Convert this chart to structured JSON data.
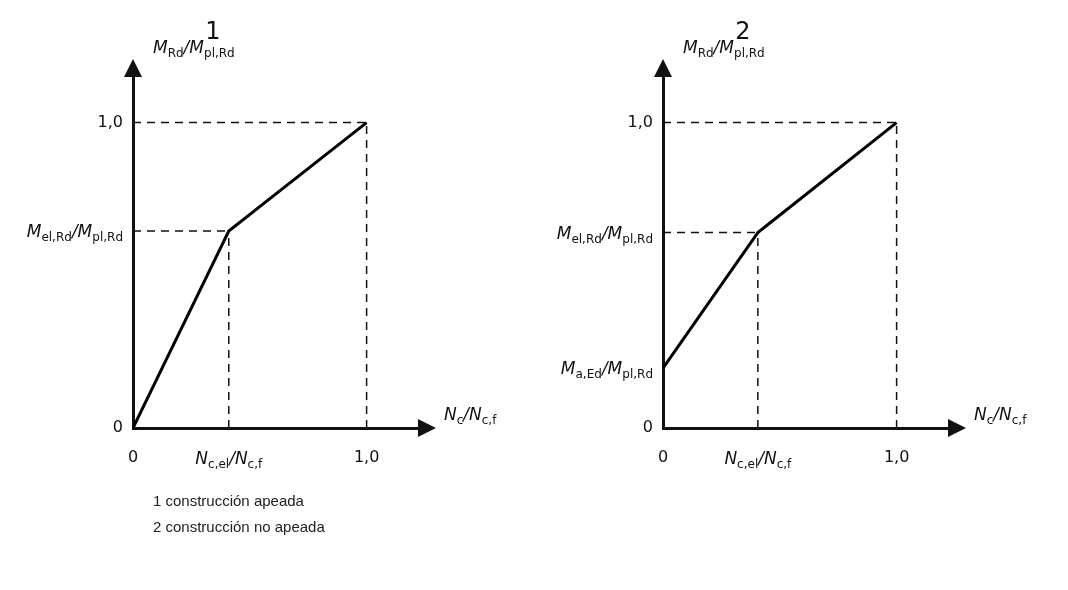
{
  "chart_data": [
    {
      "type": "line",
      "title": "1",
      "xlabel": "N$_{c}$/N$_{c,f}$",
      "ylabel": "M$_{Rd}$/M$_{pl,Rd}$",
      "xlim": [
        0,
        1.22
      ],
      "ylim": [
        0,
        1.15
      ],
      "xticks": [
        {
          "value": 0,
          "label": "0"
        },
        {
          "value": 0.41,
          "label": "N$_{c,el}$/N$_{c,f}$"
        },
        {
          "value": 1,
          "label": "1,0"
        }
      ],
      "yticks": [
        {
          "value": 0,
          "label": "0"
        },
        {
          "value": 0.645,
          "label": "M$_{el,Rd}$/M$_{pl,Rd}$"
        },
        {
          "value": 1,
          "label": "1,0"
        }
      ],
      "series": [
        {
          "color": "#000000",
          "x": [
            0,
            0.41,
            1
          ],
          "values": [
            0,
            0.645,
            1
          ]
        }
      ],
      "ref_lines": [
        {
          "axis": "x",
          "value": 0.41,
          "line_style": "dashed"
        },
        {
          "axis": "y",
          "value": 0.645,
          "line_style": "dashed"
        },
        {
          "axis": "x",
          "value": 1,
          "line_style": "dashed"
        },
        {
          "axis": "y",
          "value": 1,
          "line_style": "dashed"
        }
      ],
      "grid": false,
      "legend": false,
      "marker": "none",
      "line_style": "solid",
      "annotations": [
        "1 construcción apeada",
        "2 construcción no apeada"
      ]
    },
    {
      "type": "line",
      "title": "2",
      "xlabel": "N$_{c}$/N$_{c,f}$",
      "ylabel": "M$_{Rd}$/M$_{pl,Rd}$",
      "xlim": [
        0,
        1.22
      ],
      "ylim": [
        0,
        1.15
      ],
      "xticks": [
        {
          "value": 0,
          "label": "0"
        },
        {
          "value": 0.406,
          "label": "N$_{c,el}$/N$_{c,f}$"
        },
        {
          "value": 1,
          "label": "1,0"
        }
      ],
      "yticks": [
        {
          "value": 0,
          "label": "0"
        },
        {
          "value": 0.196,
          "label": "M$_{a,Ed}$/M$_{pl,Rd}$"
        },
        {
          "value": 0.64,
          "label": "M$_{el,Rd}$/M$_{pl,Rd}$"
        },
        {
          "value": 1,
          "label": "1,0"
        }
      ],
      "series": [
        {
          "color": "#000000",
          "x": [
            0,
            0.406,
            1
          ],
          "values": [
            0.196,
            0.64,
            1
          ]
        }
      ],
      "ref_lines": [
        {
          "axis": "x",
          "value": 0.406,
          "line_style": "dashed"
        },
        {
          "axis": "y",
          "value": 0.64,
          "line_style": "dashed"
        },
        {
          "axis": "x",
          "value": 1,
          "line_style": "dashed"
        },
        {
          "axis": "y",
          "value": 1,
          "line_style": "dashed"
        }
      ],
      "grid": false,
      "legend": false,
      "marker": "none",
      "line_style": "solid"
    }
  ]
}
